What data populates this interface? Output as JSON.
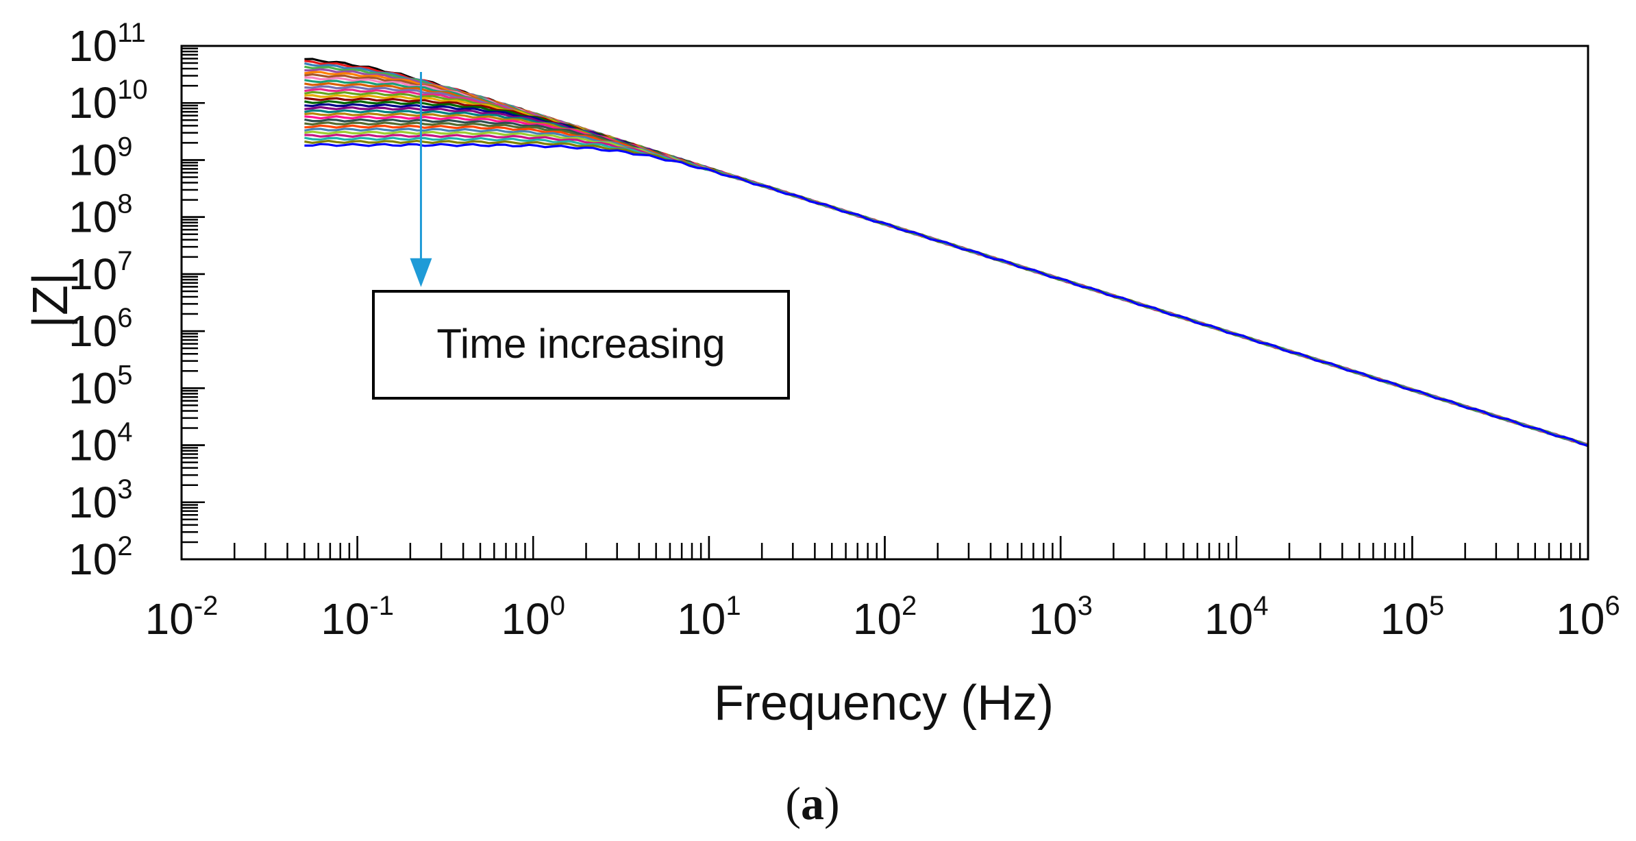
{
  "chart_data": {
    "type": "line",
    "title": "",
    "xlabel": "Frequency (Hz)",
    "ylabel": "|Z|",
    "xscale": "log",
    "yscale": "log",
    "xlim": [
      0.01,
      1000000
    ],
    "ylim": [
      100,
      100000000000
    ],
    "x_tick_labels": [
      {
        "base": "10",
        "exp": "-2",
        "value": 0.01
      },
      {
        "base": "10",
        "exp": "-1",
        "value": 0.1
      },
      {
        "base": "10",
        "exp": "0",
        "value": 1
      },
      {
        "base": "10",
        "exp": "1",
        "value": 10
      },
      {
        "base": "10",
        "exp": "2",
        "value": 100
      },
      {
        "base": "10",
        "exp": "3",
        "value": 1000
      },
      {
        "base": "10",
        "exp": "4",
        "value": 10000
      },
      {
        "base": "10",
        "exp": "5",
        "value": 100000
      },
      {
        "base": "10",
        "exp": "6",
        "value": 1000000
      }
    ],
    "y_tick_labels": [
      {
        "base": "10",
        "exp": "2",
        "value": 100
      },
      {
        "base": "10",
        "exp": "3",
        "value": 1000
      },
      {
        "base": "10",
        "exp": "4",
        "value": 10000
      },
      {
        "base": "10",
        "exp": "5",
        "value": 100000
      },
      {
        "base": "10",
        "exp": "6",
        "value": 1000000
      },
      {
        "base": "10",
        "exp": "7",
        "value": 10000000
      },
      {
        "base": "10",
        "exp": "8",
        "value": 100000000
      },
      {
        "base": "10",
        "exp": "9",
        "value": 1000000000
      },
      {
        "base": "10",
        "exp": "10",
        "value": 10000000000
      },
      {
        "base": "10",
        "exp": "11",
        "value": 100000000000
      }
    ],
    "series_description": "Many impedance spectra recorded over time; |Z| decreases at low frequency as time increases, all curves converge above ~10 Hz",
    "series_count": 30,
    "series_freq_range": [
      0.05,
      1000000
    ],
    "series_low_freq_z_range": [
      1600000000,
      58000000000
    ],
    "series_colors": [
      "#000000",
      "#e41a1c",
      "#377eb8",
      "#4daf4a",
      "#984ea3",
      "#ff7f00",
      "#a65628",
      "#f781bf",
      "#1b9e77",
      "#d95f02",
      "#7570b3",
      "#e7298a",
      "#66a61e",
      "#e6ab02",
      "#8b0000",
      "#006400",
      "#00008b",
      "#800080",
      "#008080",
      "#b8860b",
      "#ff1493",
      "#2f4f4f",
      "#556b2f",
      "#ff4500",
      "#4682b4",
      "#9acd32",
      "#c71585",
      "#20b2aa",
      "#808000",
      "#0000ff"
    ],
    "annotation": {
      "text": "Time increasing",
      "arrow_from": {
        "freq": 0.23,
        "z": 35000000000
      },
      "arrow_to": {
        "freq": 0.23,
        "z": 7000000
      },
      "arrow_color": "#1f9bd7"
    }
  },
  "caption": {
    "open": "(",
    "letter": "a",
    "close": ")"
  }
}
